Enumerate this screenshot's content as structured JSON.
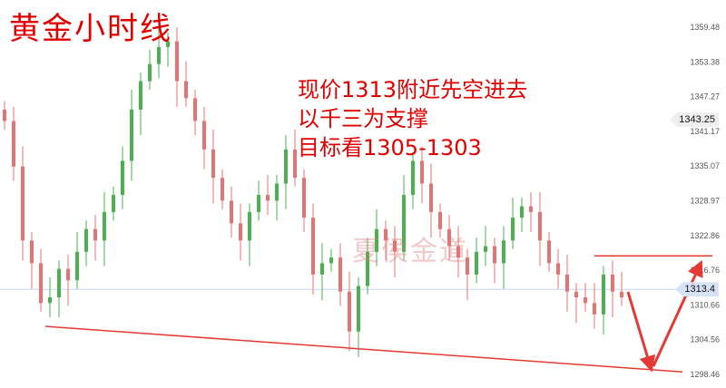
{
  "title": "黄金小时线",
  "annotation_lines": [
    "现价1313附近先空进去",
    "以千三为支撑",
    "目标看1305-1303"
  ],
  "watermark": "夏侯金道",
  "chart_data": {
    "type": "candlestick",
    "title": "黄金小时线",
    "ylim": [
      1298.46,
      1359.48
    ],
    "y_ticks": [
      "1359.48",
      "1353.38",
      "1347.27",
      "1341.17",
      "1335.07",
      "1328.97",
      "1322.86",
      "1316.76",
      "1310.66",
      "1304.56",
      "1298.46"
    ],
    "closes": [
      1343,
      1335,
      1322,
      1318,
      1311,
      1312,
      1317,
      1315,
      1320,
      1324,
      1322,
      1327,
      1330,
      1336,
      1345,
      1350,
      1353,
      1356,
      1357,
      1350,
      1347,
      1343,
      1338,
      1333,
      1329,
      1325,
      1322,
      1327,
      1330,
      1329,
      1332,
      1338,
      1333,
      1326,
      1316,
      1318,
      1319,
      1313,
      1306,
      1314,
      1320,
      1324,
      1322,
      1320,
      1330,
      1336,
      1332,
      1327,
      1324,
      1321,
      1319,
      1316,
      1320,
      1321,
      1318,
      1322,
      1326,
      1328,
      1327,
      1322,
      1318,
      1316,
      1313,
      1312,
      1311,
      1309,
      1316,
      1313,
      1312
    ],
    "price_labels": [
      {
        "text": "1343.25",
        "value": 1343.25,
        "color": "#eeeeee"
      },
      {
        "text": "1313.4",
        "value": 1313.4,
        "color": "#d6e2f5"
      }
    ],
    "current_price": 1313.4,
    "resistance_level": 1319.3,
    "support_trendline": [
      1306.9,
      1298.9
    ],
    "up_color": "#4caf50",
    "down_color": "#e57373",
    "line_color": "#e53935"
  }
}
